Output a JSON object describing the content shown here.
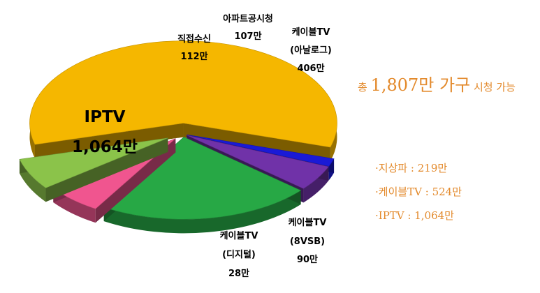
{
  "chart_data": {
    "type": "pie",
    "unit": "만",
    "slices": [
      {
        "name": "IPTV",
        "value": 1064,
        "value_label": "1,064만",
        "color": "#f5b700"
      },
      {
        "name": "케이블TV (디지털)",
        "value": 28,
        "value_label": "28만",
        "color": "#1a1ad6"
      },
      {
        "name": "케이블TV (8VSB)",
        "value": 90,
        "value_label": "90만",
        "color": "#7032a8"
      },
      {
        "name": "케이블TV (아날로그)",
        "value": 406,
        "value_label": "406만",
        "color": "#27a845"
      },
      {
        "name": "아파트공시청",
        "value": 107,
        "value_label": "107만",
        "color": "#f0558f"
      },
      {
        "name": "직접수신",
        "value": 112,
        "value_label": "112만",
        "color": "#8bc34a"
      }
    ]
  },
  "labels": {
    "iptv_name": "IPTV",
    "iptv_value": "1,064만",
    "direct_name": "직접수신",
    "direct_value": "112만",
    "apt_name": "아파트공시청",
    "apt_value": "107만",
    "analog_name": "케이블TV",
    "analog_sub": "(아날로그)",
    "analog_value": "406만",
    "vsb_name": "케이블TV",
    "vsb_sub": "(8VSB)",
    "vsb_value": "90만",
    "digital_name": "케이블TV",
    "digital_sub": "(디지털)",
    "digital_value": "28만"
  },
  "summary": {
    "prefix": "총",
    "total": "1,807만 가구",
    "suffix": "시청 가능",
    "notes": [
      "·지상파 : 219만",
      "·케이블TV : 524만",
      "·IPTV : 1,064만"
    ]
  }
}
